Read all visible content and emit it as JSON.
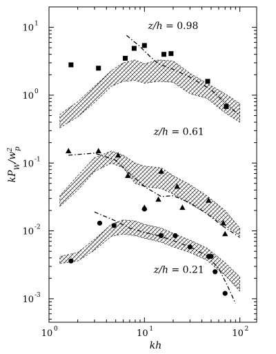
{
  "chart_data": {
    "type": "scatter",
    "title": "",
    "xlabel": "kh",
    "ylabel_parts": {
      "base": "kP",
      "sub": "W",
      "sep": "/w",
      "sup": "2",
      "sub2": "p"
    },
    "x_scale": "log",
    "y_scale": "log",
    "xlim": [
      1,
      150
    ],
    "ylim": [
      0.00045,
      20
    ],
    "x_ticks": [
      {
        "value": 1,
        "base": "10",
        "exp": "0"
      },
      {
        "value": 10,
        "base": "10",
        "exp": "1"
      },
      {
        "value": 100,
        "base": "10",
        "exp": "2"
      }
    ],
    "y_ticks": [
      {
        "value": 10,
        "base": "10",
        "exp": "1"
      },
      {
        "value": 1,
        "base": "10",
        "exp": "0"
      },
      {
        "value": 0.1,
        "base": "10",
        "exp": "-1"
      },
      {
        "value": 0.01,
        "base": "10",
        "exp": "-2"
      },
      {
        "value": 0.001,
        "base": "10",
        "exp": "-3"
      }
    ],
    "grid": false,
    "annotations": [
      {
        "text": "z/h = 0.98",
        "x": 20,
        "y": 9.5
      },
      {
        "text": "z/h = 0.61",
        "x": 23,
        "y": 0.26
      },
      {
        "text": "z/h = 0.21",
        "x": 23,
        "y": 0.0024
      }
    ],
    "series": [
      {
        "marker": "square",
        "points": [
          [
            1.7,
            2.8
          ],
          [
            3.3,
            2.5
          ],
          [
            6.3,
            3.5
          ],
          [
            7.8,
            4.9
          ],
          [
            10,
            5.4
          ],
          [
            16,
            4.0
          ],
          [
            19,
            4.1
          ],
          [
            46,
            1.6
          ],
          [
            72,
            0.68
          ]
        ],
        "fit_line": [
          [
            6.5,
            7.6
          ],
          [
            9,
            5.2
          ],
          [
            11.5,
            3.7
          ],
          [
            14,
            2.9
          ],
          [
            20,
            2.4
          ],
          [
            30,
            1.85
          ],
          [
            50,
            1.2
          ],
          [
            80,
            0.65
          ],
          [
            100,
            0.5
          ]
        ],
        "band_lower": [
          [
            1.3,
            0.33
          ],
          [
            2,
            0.48
          ],
          [
            3,
            0.78
          ],
          [
            4.5,
            1.35
          ],
          [
            6,
            1.6
          ],
          [
            8,
            1.65
          ],
          [
            10,
            1.5
          ],
          [
            14,
            1.6
          ],
          [
            20,
            1.55
          ],
          [
            30,
            1.05
          ],
          [
            45,
            0.9
          ],
          [
            70,
            0.55
          ],
          [
            100,
            0.4
          ]
        ],
        "band_upper": [
          [
            1.3,
            0.52
          ],
          [
            2,
            0.8
          ],
          [
            3,
            1.35
          ],
          [
            4.5,
            2.3
          ],
          [
            6,
            3.0
          ],
          [
            8,
            3.3
          ],
          [
            10,
            2.9
          ],
          [
            14,
            3.3
          ],
          [
            20,
            3.2
          ],
          [
            30,
            2.1
          ],
          [
            45,
            1.5
          ],
          [
            70,
            1.05
          ],
          [
            100,
            0.75
          ]
        ]
      },
      {
        "marker": "triangle",
        "points": [
          [
            1.6,
            0.15
          ],
          [
            3.3,
            0.15
          ],
          [
            5.3,
            0.13
          ],
          [
            6.7,
            0.065
          ],
          [
            10,
            0.022
          ],
          [
            14,
            0.029
          ],
          [
            15,
            0.075
          ],
          [
            22,
            0.045
          ],
          [
            25,
            0.022
          ],
          [
            47,
            0.028
          ],
          [
            67,
            0.013
          ],
          [
            70,
            0.009
          ]
        ],
        "fit_line": [
          [
            1.6,
            0.13
          ],
          [
            3,
            0.14
          ],
          [
            5,
            0.11
          ],
          [
            7,
            0.07
          ],
          [
            10,
            0.045
          ],
          [
            15,
            0.032
          ],
          [
            20,
            0.033
          ],
          [
            30,
            0.026
          ],
          [
            45,
            0.018
          ],
          [
            65,
            0.012
          ],
          [
            100,
            0.008
          ]
        ],
        "band_lower": [
          [
            1.3,
            0.023
          ],
          [
            2,
            0.04
          ],
          [
            3,
            0.075
          ],
          [
            4.5,
            0.1
          ],
          [
            6,
            0.085
          ],
          [
            8,
            0.05
          ],
          [
            10,
            0.045
          ],
          [
            15,
            0.042
          ],
          [
            20,
            0.035
          ],
          [
            30,
            0.025
          ],
          [
            45,
            0.018
          ],
          [
            70,
            0.012
          ],
          [
            100,
            0.0085
          ]
        ],
        "band_upper": [
          [
            1.3,
            0.033
          ],
          [
            2,
            0.065
          ],
          [
            3,
            0.12
          ],
          [
            4.5,
            0.15
          ],
          [
            6,
            0.13
          ],
          [
            8,
            0.1
          ],
          [
            10,
            0.09
          ],
          [
            15,
            0.085
          ],
          [
            20,
            0.065
          ],
          [
            30,
            0.048
          ],
          [
            45,
            0.033
          ],
          [
            70,
            0.02
          ],
          [
            100,
            0.011
          ]
        ]
      },
      {
        "marker": "circle",
        "points": [
          [
            1.7,
            0.0036
          ],
          [
            3.4,
            0.013
          ],
          [
            4.8,
            0.012
          ],
          [
            10,
            0.021
          ],
          [
            15,
            0.0085
          ],
          [
            21,
            0.0085
          ],
          [
            30,
            0.0058
          ],
          [
            47,
            0.0042
          ],
          [
            50,
            0.0042
          ],
          [
            55,
            0.0025
          ],
          [
            70,
            0.0012
          ]
        ],
        "fit_line": [
          [
            3,
            0.019
          ],
          [
            5,
            0.014
          ],
          [
            7,
            0.011
          ],
          [
            10,
            0.0095
          ],
          [
            14,
            0.0085
          ],
          [
            20,
            0.0072
          ],
          [
            30,
            0.0058
          ],
          [
            45,
            0.0043
          ],
          [
            60,
            0.0028
          ],
          [
            75,
            0.0015
          ],
          [
            90,
            0.00085
          ]
        ],
        "band_lower": [
          [
            1.3,
            0.0033
          ],
          [
            2,
            0.0036
          ],
          [
            3,
            0.0052
          ],
          [
            4.5,
            0.0083
          ],
          [
            6,
            0.009
          ],
          [
            8,
            0.0085
          ],
          [
            10,
            0.0078
          ],
          [
            15,
            0.0068
          ],
          [
            20,
            0.0058
          ],
          [
            30,
            0.0048
          ],
          [
            45,
            0.0037
          ],
          [
            70,
            0.0022
          ],
          [
            100,
            0.0013
          ]
        ],
        "band_upper": [
          [
            1.3,
            0.0042
          ],
          [
            2,
            0.0048
          ],
          [
            3,
            0.0075
          ],
          [
            4.5,
            0.0125
          ],
          [
            6,
            0.0145
          ],
          [
            8,
            0.014
          ],
          [
            10,
            0.0125
          ],
          [
            15,
            0.011
          ],
          [
            20,
            0.0092
          ],
          [
            30,
            0.0073
          ],
          [
            45,
            0.0056
          ],
          [
            70,
            0.0034
          ],
          [
            100,
            0.0021
          ]
        ]
      }
    ]
  }
}
